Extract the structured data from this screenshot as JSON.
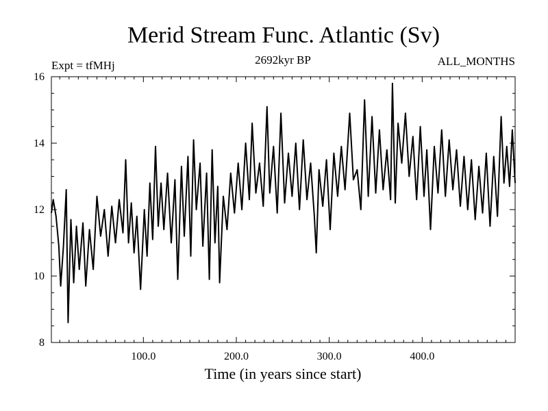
{
  "chart_data": {
    "type": "line",
    "title": "Merid Stream Func. Atlantic (Sv)",
    "subtitle": "2692kyr BP",
    "experiment_label": "Expt = tfMHj",
    "period_label": "ALL_MONTHS",
    "xlabel": "Time (in years since start)",
    "ylabel": "",
    "xlim": [
      1,
      500
    ],
    "ylim": [
      8,
      16
    ],
    "x_ticks": [
      {
        "value": 100,
        "label": "100.0"
      },
      {
        "value": 200,
        "label": "200.0"
      },
      {
        "value": 300,
        "label": "300.0"
      },
      {
        "value": 400,
        "label": "400.0"
      }
    ],
    "y_ticks": [
      {
        "value": 8,
        "label": "8"
      },
      {
        "value": 10,
        "label": "10"
      },
      {
        "value": 12,
        "label": "12"
      },
      {
        "value": 14,
        "label": "14"
      },
      {
        "value": 16,
        "label": "16"
      }
    ],
    "grid": false,
    "series": [
      {
        "name": "Merid Stream Func. Atlantic",
        "color": "#000000",
        "points": [
          [
            1,
            11.9
          ],
          [
            3,
            12.3
          ],
          [
            6,
            11.8
          ],
          [
            9,
            10.9
          ],
          [
            11,
            9.7
          ],
          [
            14,
            10.9
          ],
          [
            17,
            12.6
          ],
          [
            19,
            8.6
          ],
          [
            22,
            11.7
          ],
          [
            25,
            9.8
          ],
          [
            28,
            11.5
          ],
          [
            31,
            10.2
          ],
          [
            35,
            11.6
          ],
          [
            38,
            9.7
          ],
          [
            42,
            11.4
          ],
          [
            46,
            10.2
          ],
          [
            50,
            12.4
          ],
          [
            54,
            11.2
          ],
          [
            58,
            12.0
          ],
          [
            62,
            10.6
          ],
          [
            66,
            12.1
          ],
          [
            70,
            11.0
          ],
          [
            74,
            12.3
          ],
          [
            78,
            11.3
          ],
          [
            81,
            13.5
          ],
          [
            84,
            11.0
          ],
          [
            87,
            12.2
          ],
          [
            90,
            10.7
          ],
          [
            93,
            11.8
          ],
          [
            97,
            9.6
          ],
          [
            101,
            12.0
          ],
          [
            104,
            10.6
          ],
          [
            107,
            12.8
          ],
          [
            110,
            11.1
          ],
          [
            113,
            13.9
          ],
          [
            116,
            11.5
          ],
          [
            119,
            12.8
          ],
          [
            122,
            11.4
          ],
          [
            126,
            13.1
          ],
          [
            130,
            11.0
          ],
          [
            134,
            12.9
          ],
          [
            137,
            9.9
          ],
          [
            141,
            13.3
          ],
          [
            144,
            11.2
          ],
          [
            148,
            13.6
          ],
          [
            151,
            10.6
          ],
          [
            154,
            14.1
          ],
          [
            157,
            12.0
          ],
          [
            161,
            13.4
          ],
          [
            164,
            10.9
          ],
          [
            168,
            13.1
          ],
          [
            171,
            9.9
          ],
          [
            174,
            13.8
          ],
          [
            177,
            11.0
          ],
          [
            180,
            12.7
          ],
          [
            182,
            9.8
          ],
          [
            186,
            12.4
          ],
          [
            190,
            11.4
          ],
          [
            194,
            13.1
          ],
          [
            198,
            11.9
          ],
          [
            202,
            13.4
          ],
          [
            206,
            12.0
          ],
          [
            210,
            14.0
          ],
          [
            214,
            12.3
          ],
          [
            217,
            14.6
          ],
          [
            221,
            12.5
          ],
          [
            225,
            13.4
          ],
          [
            229,
            12.1
          ],
          [
            233,
            15.1
          ],
          [
            236,
            12.5
          ],
          [
            240,
            13.9
          ],
          [
            244,
            11.9
          ],
          [
            248,
            14.9
          ],
          [
            252,
            12.2
          ],
          [
            256,
            13.7
          ],
          [
            260,
            12.4
          ],
          [
            264,
            14.0
          ],
          [
            268,
            12.0
          ],
          [
            272,
            14.1
          ],
          [
            276,
            12.3
          ],
          [
            280,
            13.4
          ],
          [
            284,
            11.8
          ],
          [
            286,
            10.7
          ],
          [
            289,
            13.2
          ],
          [
            293,
            12.1
          ],
          [
            297,
            13.5
          ],
          [
            301,
            11.4
          ],
          [
            305,
            13.7
          ],
          [
            309,
            12.4
          ],
          [
            313,
            13.9
          ],
          [
            317,
            12.6
          ],
          [
            322,
            14.9
          ],
          [
            326,
            12.9
          ],
          [
            330,
            13.2
          ],
          [
            334,
            12.0
          ],
          [
            338,
            15.3
          ],
          [
            342,
            12.4
          ],
          [
            346,
            14.8
          ],
          [
            350,
            12.5
          ],
          [
            354,
            14.4
          ],
          [
            358,
            12.6
          ],
          [
            362,
            13.8
          ],
          [
            366,
            12.3
          ],
          [
            368,
            15.8
          ],
          [
            371,
            12.2
          ],
          [
            374,
            14.6
          ],
          [
            378,
            13.4
          ],
          [
            382,
            14.9
          ],
          [
            386,
            13.0
          ],
          [
            390,
            14.2
          ],
          [
            394,
            12.3
          ],
          [
            398,
            14.5
          ],
          [
            402,
            12.4
          ],
          [
            405,
            13.8
          ],
          [
            409,
            11.4
          ],
          [
            413,
            13.9
          ],
          [
            417,
            12.5
          ],
          [
            421,
            14.4
          ],
          [
            425,
            12.4
          ],
          [
            429,
            14.1
          ],
          [
            433,
            12.6
          ],
          [
            437,
            13.8
          ],
          [
            441,
            12.1
          ],
          [
            445,
            13.6
          ],
          [
            449,
            12.0
          ],
          [
            453,
            13.5
          ],
          [
            457,
            11.7
          ],
          [
            461,
            13.3
          ],
          [
            465,
            11.9
          ],
          [
            469,
            13.7
          ],
          [
            473,
            11.5
          ],
          [
            477,
            13.6
          ],
          [
            481,
            11.8
          ],
          [
            485,
            14.8
          ],
          [
            488,
            12.8
          ],
          [
            491,
            13.9
          ],
          [
            494,
            12.7
          ],
          [
            497,
            14.4
          ],
          [
            500,
            12.8
          ]
        ]
      }
    ]
  }
}
